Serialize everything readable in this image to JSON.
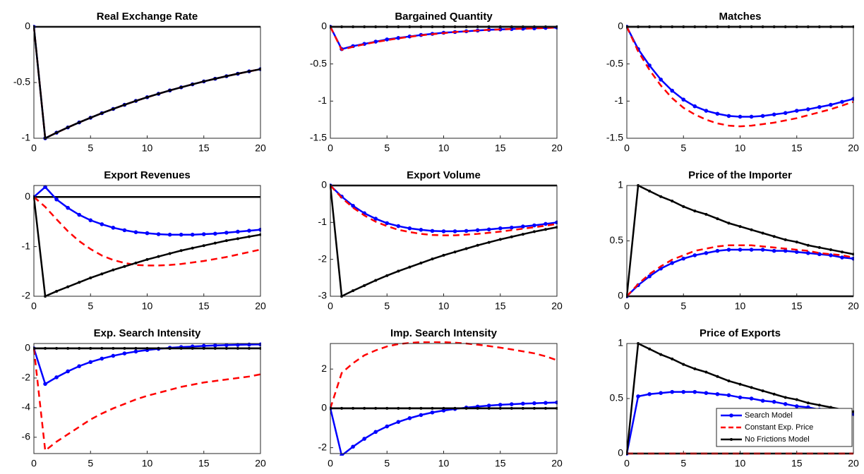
{
  "chart_data": [
    {
      "type": "line",
      "title": "Real Exchange Rate",
      "x": [
        0,
        1,
        2,
        3,
        4,
        5,
        6,
        7,
        8,
        9,
        10,
        11,
        12,
        13,
        14,
        15,
        16,
        17,
        18,
        19,
        20
      ],
      "xlim": [
        0,
        20
      ],
      "xticks": [
        0,
        5,
        10,
        15,
        20
      ],
      "ylim": [
        -1,
        0
      ],
      "yticks": [
        -1,
        -0.5,
        0
      ],
      "zero_line": true,
      "series": [
        {
          "color": "#0000ff",
          "style": "solid",
          "marker": "dot",
          "values": [
            0,
            -1,
            -0.95,
            -0.903,
            -0.858,
            -0.816,
            -0.775,
            -0.737,
            -0.7,
            -0.665,
            -0.632,
            -0.601,
            -0.571,
            -0.543,
            -0.516,
            -0.49,
            -0.466,
            -0.443,
            -0.421,
            -0.4,
            -0.38
          ]
        },
        {
          "color": "#ff0000",
          "style": "dashed",
          "marker": "none",
          "values": [
            0,
            -1,
            -0.95,
            -0.903,
            -0.858,
            -0.816,
            -0.775,
            -0.737,
            -0.7,
            -0.665,
            -0.632,
            -0.601,
            -0.571,
            -0.543,
            -0.516,
            -0.49,
            -0.466,
            -0.443,
            -0.421,
            -0.4,
            -0.38
          ]
        },
        {
          "color": "#000000",
          "style": "solid",
          "marker": "star",
          "values": [
            0,
            -1,
            -0.95,
            -0.903,
            -0.858,
            -0.816,
            -0.775,
            -0.737,
            -0.7,
            -0.665,
            -0.632,
            -0.601,
            -0.571,
            -0.543,
            -0.516,
            -0.49,
            -0.466,
            -0.443,
            -0.421,
            -0.4,
            -0.38
          ]
        }
      ]
    },
    {
      "type": "line",
      "title": "Bargained Quantity",
      "x": [
        0,
        1,
        2,
        3,
        4,
        5,
        6,
        7,
        8,
        9,
        10,
        11,
        12,
        13,
        14,
        15,
        16,
        17,
        18,
        19,
        20
      ],
      "xlim": [
        0,
        20
      ],
      "xticks": [
        0,
        5,
        10,
        15,
        20
      ],
      "ylim": [
        -1.5,
        0
      ],
      "yticks": [
        -1.5,
        -1,
        -0.5,
        0
      ],
      "zero_line": true,
      "series": [
        {
          "color": "#0000ff",
          "style": "solid",
          "marker": "dot",
          "values": [
            0,
            -0.3,
            -0.26,
            -0.23,
            -0.2,
            -0.17,
            -0.15,
            -0.13,
            -0.11,
            -0.095,
            -0.08,
            -0.07,
            -0.06,
            -0.05,
            -0.04,
            -0.035,
            -0.03,
            -0.025,
            -0.02,
            -0.015,
            -0.01
          ]
        },
        {
          "color": "#ff0000",
          "style": "dashed",
          "marker": "none",
          "values": [
            0,
            -0.31,
            -0.27,
            -0.235,
            -0.205,
            -0.18,
            -0.155,
            -0.135,
            -0.115,
            -0.1,
            -0.085,
            -0.07,
            -0.06,
            -0.05,
            -0.04,
            -0.035,
            -0.03,
            -0.025,
            -0.02,
            -0.015,
            -0.01
          ]
        },
        {
          "color": "#000000",
          "style": "solid",
          "marker": "star",
          "values": [
            0,
            0,
            0,
            0,
            0,
            0,
            0,
            0,
            0,
            0,
            0,
            0,
            0,
            0,
            0,
            0,
            0,
            0,
            0,
            0,
            0
          ]
        }
      ]
    },
    {
      "type": "line",
      "title": "Matches",
      "x": [
        0,
        1,
        2,
        3,
        4,
        5,
        6,
        7,
        8,
        9,
        10,
        11,
        12,
        13,
        14,
        15,
        16,
        17,
        18,
        19,
        20
      ],
      "xlim": [
        0,
        20
      ],
      "xticks": [
        0,
        5,
        10,
        15,
        20
      ],
      "ylim": [
        -1.5,
        0
      ],
      "yticks": [
        -1.5,
        -1,
        -0.5,
        0
      ],
      "zero_line": true,
      "series": [
        {
          "color": "#0000ff",
          "style": "solid",
          "marker": "dot",
          "values": [
            0,
            -0.3,
            -0.52,
            -0.71,
            -0.86,
            -0.98,
            -1.07,
            -1.13,
            -1.17,
            -1.2,
            -1.21,
            -1.21,
            -1.2,
            -1.18,
            -1.16,
            -1.13,
            -1.11,
            -1.08,
            -1.05,
            -1.01,
            -0.97
          ]
        },
        {
          "color": "#ff0000",
          "style": "dashed",
          "marker": "none",
          "values": [
            0,
            -0.33,
            -0.58,
            -0.79,
            -0.96,
            -1.09,
            -1.18,
            -1.25,
            -1.3,
            -1.33,
            -1.34,
            -1.33,
            -1.31,
            -1.29,
            -1.26,
            -1.23,
            -1.19,
            -1.15,
            -1.11,
            -1.06,
            -1.01
          ]
        },
        {
          "color": "#000000",
          "style": "solid",
          "marker": "star",
          "values": [
            0,
            0,
            0,
            0,
            0,
            0,
            0,
            0,
            0,
            0,
            0,
            0,
            0,
            0,
            0,
            0,
            0,
            0,
            0,
            0,
            0
          ]
        }
      ]
    },
    {
      "type": "line",
      "title": "Export Revenues",
      "x": [
        0,
        1,
        2,
        3,
        4,
        5,
        6,
        7,
        8,
        9,
        10,
        11,
        12,
        13,
        14,
        15,
        16,
        17,
        18,
        19,
        20
      ],
      "xlim": [
        0,
        20
      ],
      "xticks": [
        0,
        5,
        10,
        15,
        20
      ],
      "ylim": [
        -2,
        0.23
      ],
      "yticks": [
        -2,
        -1,
        0
      ],
      "zero_line": true,
      "series": [
        {
          "color": "#0000ff",
          "style": "solid",
          "marker": "dot",
          "values": [
            0,
            0.2,
            -0.05,
            -0.22,
            -0.36,
            -0.47,
            -0.55,
            -0.62,
            -0.67,
            -0.71,
            -0.73,
            -0.75,
            -0.76,
            -0.76,
            -0.76,
            -0.75,
            -0.74,
            -0.72,
            -0.7,
            -0.68,
            -0.66
          ]
        },
        {
          "color": "#ff0000",
          "style": "dashed",
          "marker": "none",
          "values": [
            0,
            -0.2,
            -0.45,
            -0.69,
            -0.89,
            -1.05,
            -1.18,
            -1.27,
            -1.33,
            -1.37,
            -1.38,
            -1.38,
            -1.37,
            -1.35,
            -1.32,
            -1.29,
            -1.25,
            -1.21,
            -1.16,
            -1.11,
            -1.06
          ]
        },
        {
          "color": "#000000",
          "style": "solid",
          "marker": "star",
          "values": [
            0,
            -2,
            -1.9,
            -1.81,
            -1.72,
            -1.63,
            -1.55,
            -1.47,
            -1.4,
            -1.33,
            -1.26,
            -1.2,
            -1.14,
            -1.08,
            -1.03,
            -0.98,
            -0.93,
            -0.88,
            -0.84,
            -0.8,
            -0.76
          ]
        }
      ]
    },
    {
      "type": "line",
      "title": "Export Volume",
      "x": [
        0,
        1,
        2,
        3,
        4,
        5,
        6,
        7,
        8,
        9,
        10,
        11,
        12,
        13,
        14,
        15,
        16,
        17,
        18,
        19,
        20
      ],
      "xlim": [
        0,
        20
      ],
      "xticks": [
        0,
        5,
        10,
        15,
        20
      ],
      "ylim": [
        -3,
        0
      ],
      "yticks": [
        -3,
        -2,
        -1,
        0
      ],
      "zero_line": true,
      "series": [
        {
          "color": "#0000ff",
          "style": "solid",
          "marker": "dot",
          "values": [
            0,
            -0.3,
            -0.55,
            -0.75,
            -0.9,
            -1.02,
            -1.1,
            -1.16,
            -1.2,
            -1.23,
            -1.24,
            -1.24,
            -1.23,
            -1.21,
            -1.19,
            -1.16,
            -1.14,
            -1.11,
            -1.08,
            -1.04,
            -1
          ]
        },
        {
          "color": "#ff0000",
          "style": "dashed",
          "marker": "none",
          "values": [
            0,
            -0.33,
            -0.6,
            -0.81,
            -0.98,
            -1.1,
            -1.2,
            -1.26,
            -1.31,
            -1.34,
            -1.35,
            -1.35,
            -1.33,
            -1.31,
            -1.28,
            -1.25,
            -1.21,
            -1.17,
            -1.13,
            -1.09,
            -1.04
          ]
        },
        {
          "color": "#000000",
          "style": "solid",
          "marker": "star",
          "values": [
            0,
            -3,
            -2.85,
            -2.71,
            -2.57,
            -2.44,
            -2.32,
            -2.21,
            -2.1,
            -1.99,
            -1.89,
            -1.8,
            -1.71,
            -1.62,
            -1.54,
            -1.46,
            -1.39,
            -1.32,
            -1.25,
            -1.19,
            -1.13
          ]
        }
      ]
    },
    {
      "type": "line",
      "title": "Price of the Importer",
      "x": [
        0,
        1,
        2,
        3,
        4,
        5,
        6,
        7,
        8,
        9,
        10,
        11,
        12,
        13,
        14,
        15,
        16,
        17,
        18,
        19,
        20
      ],
      "xlim": [
        0,
        20
      ],
      "xticks": [
        0,
        5,
        10,
        15,
        20
      ],
      "ylim": [
        0,
        1
      ],
      "yticks": [
        0,
        0.5,
        1
      ],
      "zero_line": true,
      "series": [
        {
          "color": "#0000ff",
          "style": "solid",
          "marker": "dot",
          "values": [
            0,
            0.1,
            0.18,
            0.25,
            0.3,
            0.34,
            0.37,
            0.39,
            0.41,
            0.42,
            0.42,
            0.42,
            0.42,
            0.41,
            0.41,
            0.4,
            0.39,
            0.38,
            0.37,
            0.35,
            0.34
          ]
        },
        {
          "color": "#ff0000",
          "style": "dashed",
          "marker": "none",
          "values": [
            0,
            0.11,
            0.2,
            0.27,
            0.33,
            0.37,
            0.41,
            0.43,
            0.45,
            0.46,
            0.46,
            0.46,
            0.45,
            0.44,
            0.43,
            0.42,
            0.41,
            0.39,
            0.38,
            0.37,
            0.35
          ]
        },
        {
          "color": "#000000",
          "style": "solid",
          "marker": "star",
          "values": [
            0,
            1,
            0.95,
            0.9,
            0.86,
            0.81,
            0.77,
            0.74,
            0.7,
            0.66,
            0.63,
            0.6,
            0.57,
            0.54,
            0.51,
            0.49,
            0.46,
            0.44,
            0.42,
            0.4,
            0.38
          ]
        }
      ]
    },
    {
      "type": "line",
      "title": "Exp. Search Intensity",
      "x": [
        0,
        1,
        2,
        3,
        4,
        5,
        6,
        7,
        8,
        9,
        10,
        11,
        12,
        13,
        14,
        15,
        16,
        17,
        18,
        19,
        20
      ],
      "xlim": [
        0,
        20
      ],
      "xticks": [
        0,
        5,
        10,
        15,
        20
      ],
      "ylim": [
        -7.1,
        0.33
      ],
      "yticks": [
        -6,
        -4,
        -2,
        0
      ],
      "zero_line": true,
      "series": [
        {
          "color": "#0000ff",
          "style": "solid",
          "marker": "dot",
          "values": [
            0,
            -2.4,
            -1.95,
            -1.55,
            -1.2,
            -0.92,
            -0.69,
            -0.5,
            -0.34,
            -0.21,
            -0.11,
            -0.03,
            0.04,
            0.09,
            0.13,
            0.17,
            0.2,
            0.22,
            0.24,
            0.26,
            0.27
          ]
        },
        {
          "color": "#ff0000",
          "style": "dashed",
          "marker": "none",
          "values": [
            0,
            -6.9,
            -6.3,
            -5.8,
            -5.3,
            -4.8,
            -4.4,
            -4.05,
            -3.75,
            -3.45,
            -3.2,
            -3,
            -2.8,
            -2.6,
            -2.45,
            -2.3,
            -2.2,
            -2.1,
            -2,
            -1.9,
            -1.75
          ]
        },
        {
          "color": "#000000",
          "style": "solid",
          "marker": "star",
          "values": [
            0,
            0,
            0,
            0,
            0,
            0,
            0,
            0,
            0,
            0,
            0,
            0,
            0,
            0,
            0,
            0,
            0,
            0,
            0,
            0,
            0
          ]
        }
      ]
    },
    {
      "type": "line",
      "title": "Imp. Search Intensity",
      "x": [
        0,
        1,
        2,
        3,
        4,
        5,
        6,
        7,
        8,
        9,
        10,
        11,
        12,
        13,
        14,
        15,
        16,
        17,
        18,
        19,
        20
      ],
      "xlim": [
        0,
        20
      ],
      "xticks": [
        0,
        5,
        10,
        15,
        20
      ],
      "ylim": [
        -2.3,
        3.3
      ],
      "yticks": [
        -2,
        0,
        2
      ],
      "zero_line": true,
      "series": [
        {
          "color": "#0000ff",
          "style": "solid",
          "marker": "dot",
          "values": [
            0,
            -2.4,
            -1.95,
            -1.55,
            -1.2,
            -0.92,
            -0.69,
            -0.5,
            -0.34,
            -0.21,
            -0.11,
            -0.03,
            0.04,
            0.09,
            0.14,
            0.18,
            0.21,
            0.24,
            0.26,
            0.28,
            0.3
          ]
        },
        {
          "color": "#ff0000",
          "style": "dashed",
          "marker": "none",
          "values": [
            0,
            1.8,
            2.3,
            2.7,
            2.95,
            3.15,
            3.27,
            3.33,
            3.37,
            3.38,
            3.37,
            3.34,
            3.3,
            3.24,
            3.17,
            3.09,
            3,
            2.9,
            2.8,
            2.65,
            2.45
          ]
        },
        {
          "color": "#000000",
          "style": "solid",
          "marker": "star",
          "values": [
            0,
            0,
            0,
            0,
            0,
            0,
            0,
            0,
            0,
            0,
            0,
            0,
            0,
            0,
            0,
            0,
            0,
            0,
            0,
            0,
            0
          ]
        }
      ]
    },
    {
      "type": "line",
      "title": "Price of Exports",
      "x": [
        0,
        1,
        2,
        3,
        4,
        5,
        6,
        7,
        8,
        9,
        10,
        11,
        12,
        13,
        14,
        15,
        16,
        17,
        18,
        19,
        20
      ],
      "xlim": [
        0,
        20
      ],
      "xticks": [
        0,
        5,
        10,
        15,
        20
      ],
      "ylim": [
        0,
        1
      ],
      "yticks": [
        0,
        0.5,
        1
      ],
      "zero_line": true,
      "legend": "lower right",
      "series": [
        {
          "name": "Search Model",
          "color": "#0000ff",
          "style": "solid",
          "marker": "dot",
          "values": [
            0,
            0.52,
            0.54,
            0.55,
            0.56,
            0.56,
            0.56,
            0.55,
            0.54,
            0.53,
            0.51,
            0.5,
            0.48,
            0.47,
            0.45,
            0.43,
            0.42,
            0.4,
            0.39,
            0.37,
            0.36
          ]
        },
        {
          "name": "Constant Exp. Price",
          "color": "#ff0000",
          "style": "dashed",
          "marker": "none",
          "values": [
            0,
            0,
            0,
            0,
            0,
            0,
            0,
            0,
            0,
            0,
            0,
            0,
            0,
            0,
            0,
            0,
            0,
            0,
            0,
            0,
            0
          ]
        },
        {
          "name": "No Frictions Model",
          "color": "#000000",
          "style": "solid",
          "marker": "star",
          "values": [
            0,
            1,
            0.95,
            0.9,
            0.86,
            0.81,
            0.77,
            0.74,
            0.7,
            0.66,
            0.63,
            0.6,
            0.57,
            0.54,
            0.51,
            0.49,
            0.46,
            0.44,
            0.42,
            0.4,
            0.38
          ]
        }
      ]
    }
  ]
}
